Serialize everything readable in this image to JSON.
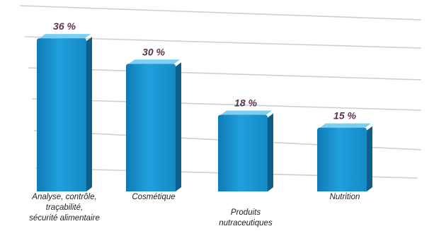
{
  "chart_data": {
    "type": "bar",
    "categories": [
      [
        "Analyse, contrôle,",
        "traçabilité,",
        "sécurité alimentaire"
      ],
      [
        "Cosmétique"
      ],
      [
        "Produits",
        "nutraceutiques"
      ],
      [
        "Nutrition"
      ]
    ],
    "values": [
      36,
      30,
      18,
      15
    ],
    "value_labels": [
      "36 %",
      "30 %",
      "18 %",
      "15 %"
    ],
    "title": "",
    "xlabel": "",
    "ylabel": "",
    "ylim": [
      0,
      40
    ],
    "grid": true,
    "legend": "none",
    "bar_color": "#1a93cf",
    "bar_side_color": "#0b5f8d",
    "bar_top_color": "#7bd0f2",
    "value_label_color": "#5e2f52"
  }
}
